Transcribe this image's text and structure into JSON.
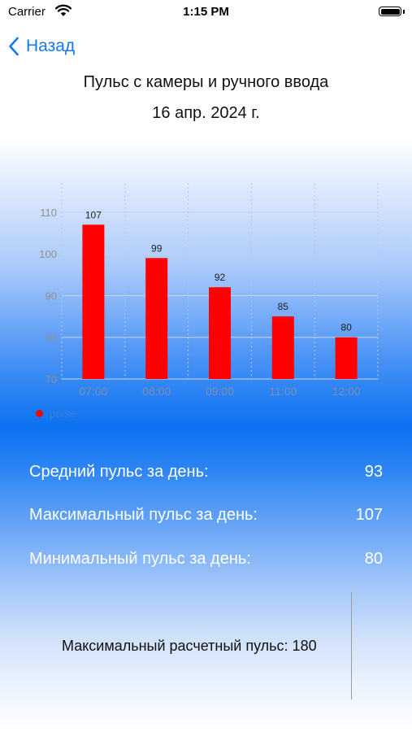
{
  "status_bar": {
    "carrier": "Carrier",
    "time": "1:15 PM"
  },
  "nav": {
    "back_label": "Назад"
  },
  "header": {
    "title": "Пульс с камеры  и ручного ввода",
    "date": "16 апр. 2024 г."
  },
  "chart_data": {
    "type": "bar",
    "categories": [
      "07:00",
      "08:00",
      "09:00",
      "11:00",
      "12:00"
    ],
    "series": [
      {
        "name": "pulse",
        "values": [
          107,
          99,
          92,
          85,
          80
        ]
      }
    ],
    "yticks": [
      "70",
      "80",
      "90",
      "100",
      "110"
    ],
    "ylim": [
      70,
      117
    ],
    "bar_color": "#ff0000",
    "grid": true,
    "legend": "bottom-left"
  },
  "stats": [
    {
      "label": "Средний пульс за день:",
      "value": "93"
    },
    {
      "label": "Максимальный пульс за день:",
      "value": "107"
    },
    {
      "label": "Минимальный пульс за день:",
      "value": "80"
    }
  ],
  "max_calc": "Максимальный расчетный пульс: 180",
  "colors": {
    "accent": "#1677f2",
    "bar": "#ff0000"
  }
}
